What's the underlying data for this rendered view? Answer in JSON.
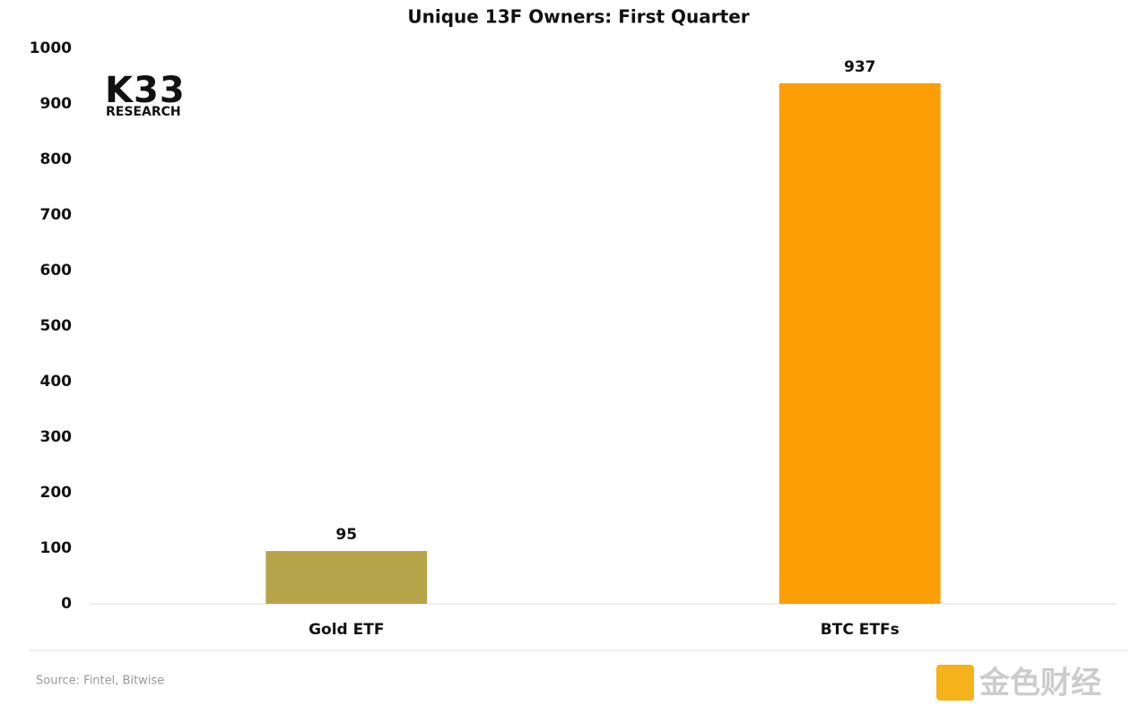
{
  "chart_data": {
    "type": "bar",
    "title": "Unique 13F Owners: First Quarter",
    "categories": [
      "Gold ETF",
      "BTC ETFs"
    ],
    "values": [
      95,
      937
    ],
    "colors": [
      "#b5a44a",
      "#fb9d04"
    ],
    "ylim": [
      0,
      1000
    ],
    "yticks": [
      0,
      100,
      200,
      300,
      400,
      500,
      600,
      700,
      800,
      900,
      1000
    ],
    "grid": false,
    "source": "Source:  Fintel, Bitwise",
    "logo": {
      "name": "K33",
      "tagline": "RESEARCH"
    },
    "watermark": "金色财经"
  }
}
